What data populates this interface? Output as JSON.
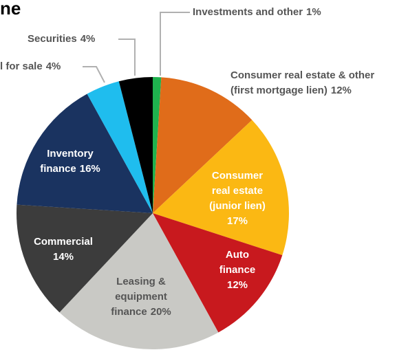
{
  "chart_data": {
    "type": "pie",
    "title": "ne",
    "categories": [
      [
        "Investments and other"
      ],
      [
        "Consumer real estate & other",
        "(first mortgage lien)"
      ],
      [
        "Consumer",
        "real estate",
        "(junior lien)"
      ],
      [
        "Auto",
        "finance"
      ],
      [
        "Leasing &",
        "equipment",
        "finance"
      ],
      [
        "Commercial"
      ],
      [
        "Inventory",
        "finance"
      ],
      [
        "l for sale"
      ],
      [
        "Securities"
      ]
    ],
    "values": [
      1,
      12,
      17,
      12,
      20,
      14,
      16,
      4,
      4
    ],
    "value_labels": [
      "1%",
      "12%",
      "17%",
      "12%",
      "20%",
      "14%",
      "16%",
      "4%",
      "4%"
    ],
    "colors": [
      "#1fb24e",
      "#e06c1a",
      "#fbb813",
      "#c8191e",
      "#c9c9c5",
      "#3c3c3c",
      "#1a3360",
      "#1fbdee",
      "#000000"
    ]
  }
}
